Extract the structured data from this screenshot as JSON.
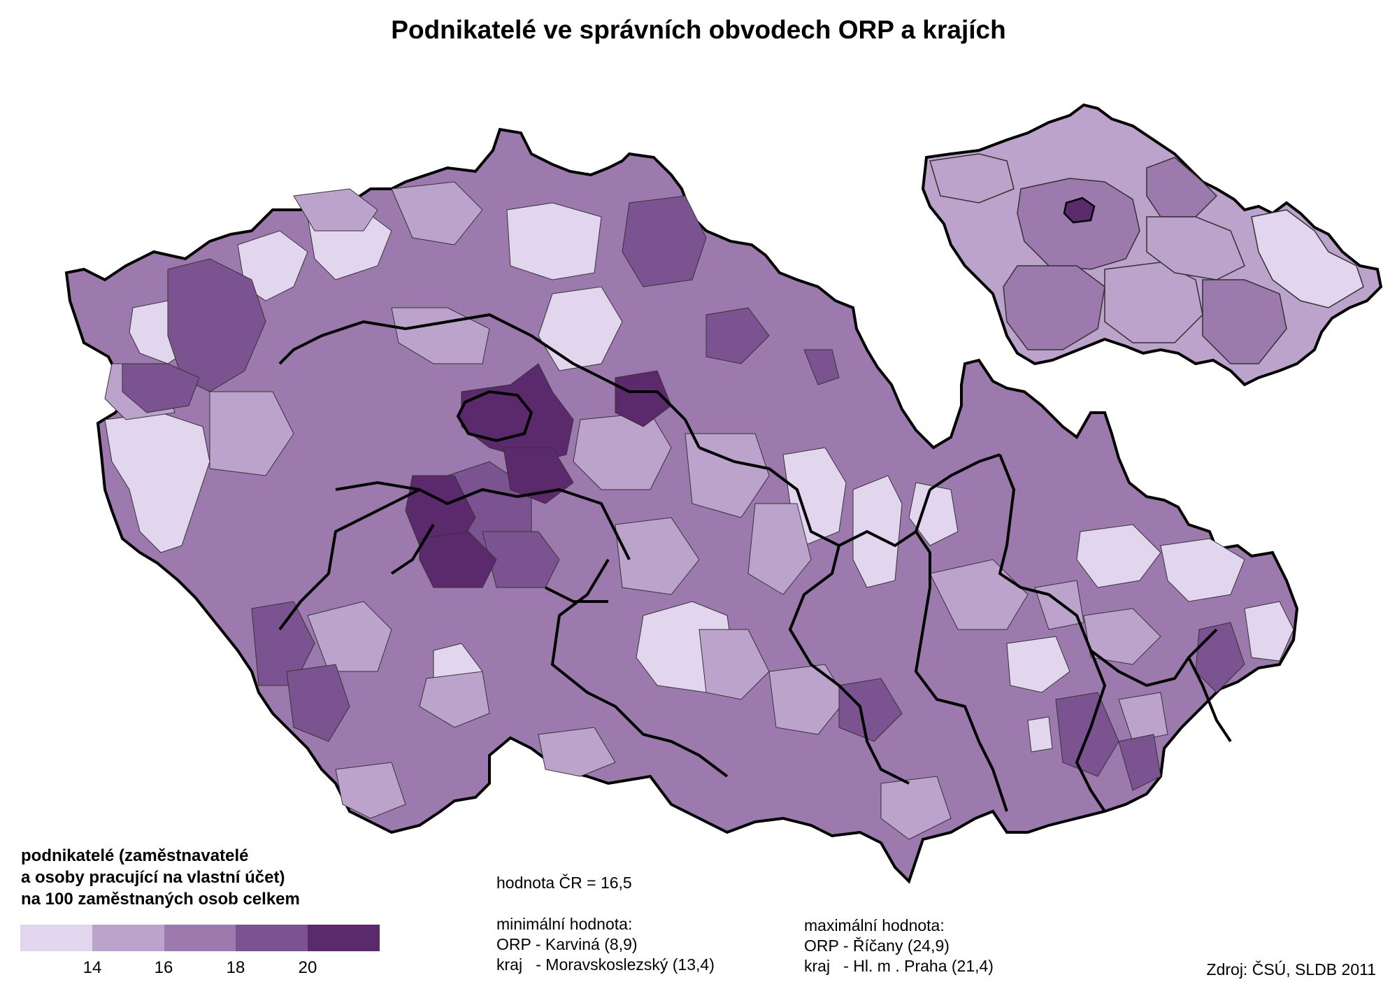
{
  "title": "Podnikatelé ve správních obvodech ORP a krajích",
  "legend": {
    "title_lines": [
      "podnikatelé (zaměstnavatelé",
      "a osoby pracující na vlastní účet)",
      "na 100 zaměstnaných osob celkem"
    ],
    "classes": [
      {
        "label": "< 14",
        "color": "#e2d6ee"
      },
      {
        "label": "14 – 16",
        "color": "#bba3cc"
      },
      {
        "label": "16 – 18",
        "color": "#9c7aae"
      },
      {
        "label": "18 – 20",
        "color": "#7b5390"
      },
      {
        "label": "> 20",
        "color": "#5b2a6c"
      }
    ],
    "ticks": [
      "14",
      "16",
      "18",
      "20"
    ]
  },
  "national_value": "hodnota ČR = 16,5",
  "minimum": {
    "heading": "minimální hodnota:",
    "orp": "ORP - Karviná (8,9)",
    "kraj": "kraj   - Moravskoslezský (13,4)"
  },
  "maximum": {
    "heading": "maximální hodnota:",
    "orp": "ORP - Říčany (24,9)",
    "kraj": "kraj   - Hl. m . Praha (21,4)"
  },
  "source": "Zdroj: ČSÚ, SLDB 2011",
  "colors": {
    "border_region": "#000000",
    "border_orp": "#333333"
  }
}
